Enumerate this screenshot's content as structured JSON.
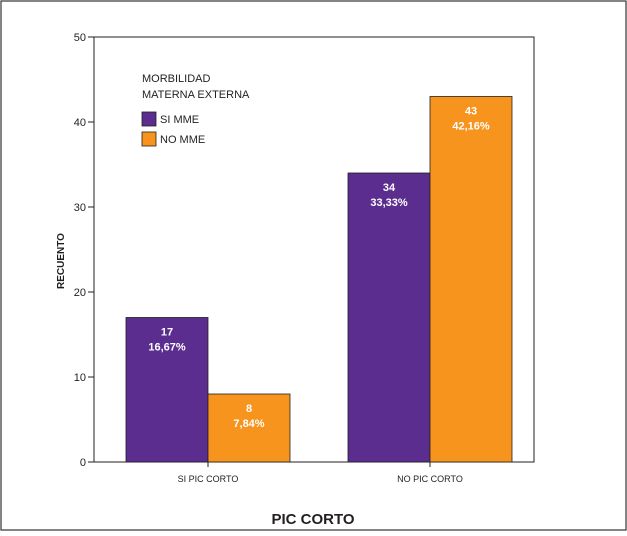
{
  "chart_data": {
    "type": "bar",
    "title": "",
    "xlabel": "PIC CORTO",
    "ylabel": "RECUENTO",
    "categories": [
      "SI PIC CORTO",
      "NO PIC CORTO"
    ],
    "ylim": [
      0,
      50
    ],
    "yticks": [
      0,
      10,
      20,
      30,
      40,
      50
    ],
    "legend": {
      "title_line1": "MORBILIDAD",
      "title_line2": "MATERNA EXTERNA",
      "placement": "top-left"
    },
    "series": [
      {
        "name": "SI MME",
        "color": "#5b2d8e",
        "values": [
          17,
          34
        ],
        "pct_labels": [
          "16,67%",
          "33,33%"
        ]
      },
      {
        "name": "NO MME",
        "color": "#f7941d",
        "values": [
          8,
          43
        ],
        "pct_labels": [
          "7,84%",
          "42,16%"
        ]
      }
    ],
    "grid": false
  }
}
